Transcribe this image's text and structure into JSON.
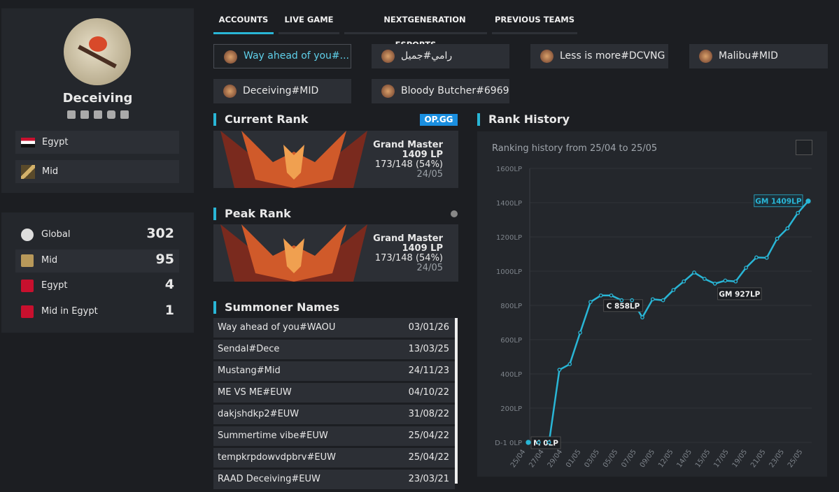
{
  "profile": {
    "name": "Deceiving",
    "tags": [
      "Egypt",
      "Mid"
    ]
  },
  "ranks": [
    {
      "label": "Global",
      "value": 302
    },
    {
      "label": "Mid",
      "value": 95
    },
    {
      "label": "Egypt",
      "value": 4
    },
    {
      "label": "Mid in Egypt",
      "value": 1
    }
  ],
  "tabs": [
    "ACCOUNTS",
    "LIVE GAME",
    "NEXTGENERATION ESPORTS",
    "PREVIOUS TEAMS"
  ],
  "accounts": [
    "Way ahead of you#...",
    "رامي#جميل",
    "Less is more#DCVNG",
    "Malibu#MID",
    "Deceiving#MID",
    "Bloody Butcher#6969"
  ],
  "current_rank": {
    "heading": "Current Rank",
    "badge": "OP.GG",
    "tier": "Grand Master",
    "lp": "1409 LP",
    "record": "173/148 (54%)",
    "date": "24/05"
  },
  "peak_rank": {
    "heading": "Peak Rank",
    "tier": "Grand Master",
    "lp": "1409 LP",
    "record": "173/148 (54%)",
    "date": "24/05"
  },
  "summoner_names": {
    "heading": "Summoner Names",
    "rows": [
      [
        "Way ahead of you#WAOU",
        "03/01/26"
      ],
      [
        "Sendal#Dece",
        "13/03/25"
      ],
      [
        "Mustang#Mid",
        "24/11/23"
      ],
      [
        "ME VS ME#EUW",
        "04/10/22"
      ],
      [
        "dakjshdkp2#EUW",
        "31/08/22"
      ],
      [
        "Summertime vibe#EUW",
        "25/04/22"
      ],
      [
        "tempkrpdowvdpbrv#EUW",
        "25/04/22"
      ],
      [
        "RAAD Deceiving#EUW",
        "23/03/21"
      ]
    ]
  },
  "chart_data": {
    "type": "line",
    "title": "Rank History",
    "subtitle": "Ranking history from 25/04 to 25/05",
    "x_tick_labels": [
      "25/04",
      "27/04",
      "29/04",
      "01/05",
      "03/05",
      "05/05",
      "07/05",
      "09/05",
      "12/05",
      "14/05",
      "15/05",
      "17/05",
      "19/05",
      "21/05",
      "23/05",
      "25/05"
    ],
    "series": [
      {
        "color": "#29b6d6",
        "values": [
          0,
          0,
          0,
          424,
          457,
          641,
          820,
          858,
          858,
          830,
          830,
          730,
          836,
          830,
          890,
          940,
          992,
          955,
          927,
          945,
          940,
          1020,
          1080,
          1078,
          1190,
          1250,
          1340,
          1409
        ],
        "value_labels": [
          "M 0LP",
          null,
          null,
          null,
          null,
          null,
          null,
          "C 858LP",
          null,
          null,
          null,
          null,
          null,
          null,
          null,
          null,
          null,
          null,
          "GM 927LP",
          null,
          null,
          null,
          null,
          null,
          null,
          null,
          null,
          "GM 1409LP"
        ]
      }
    ],
    "ylim": [
      0,
      1600
    ],
    "yticks": [
      {
        "value": 0,
        "label": "D-1 0LP"
      },
      {
        "value": 200,
        "label": "200LP"
      },
      {
        "value": 400,
        "label": "400LP"
      },
      {
        "value": 600,
        "label": "600LP"
      },
      {
        "value": 800,
        "label": "800LP"
      },
      {
        "value": 1000,
        "label": "1000LP"
      },
      {
        "value": 1200,
        "label": "1200LP"
      },
      {
        "value": 1400,
        "label": "1400LP"
      },
      {
        "value": 1600,
        "label": "1600LP"
      }
    ],
    "grid": true
  }
}
